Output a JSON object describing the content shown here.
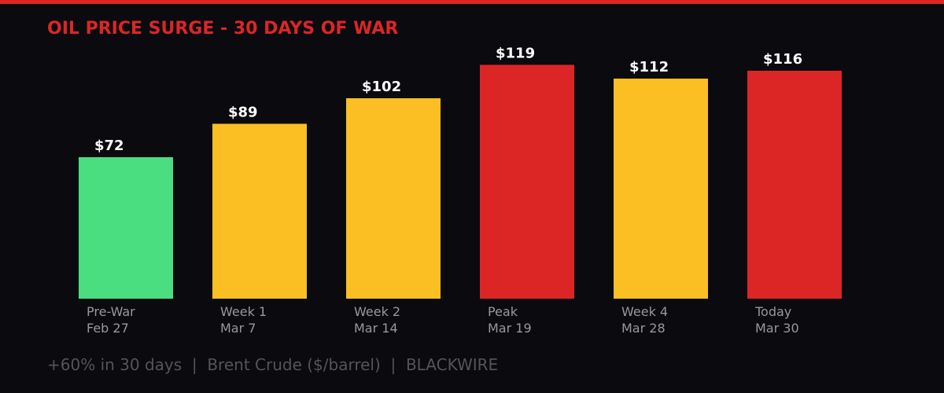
{
  "chart_data": {
    "type": "bar",
    "title": "OIL PRICE SURGE - 30 DAYS OF WAR",
    "categories": [
      {
        "label": "Pre-War",
        "date": "Feb 27"
      },
      {
        "label": "Week 1",
        "date": "Mar 7"
      },
      {
        "label": "Week 2",
        "date": "Mar 14"
      },
      {
        "label": "Peak",
        "date": "Mar 19"
      },
      {
        "label": "Week 4",
        "date": "Mar 28"
      },
      {
        "label": "Today",
        "date": "Mar 30"
      }
    ],
    "values": [
      72,
      89,
      102,
      119,
      112,
      116
    ],
    "value_labels": [
      "$72",
      "$89",
      "$102",
      "$119",
      "$112",
      "$116"
    ],
    "bar_colors": [
      "#4ade80",
      "#fbbf24",
      "#fbbf24",
      "#dc2626",
      "#fbbf24",
      "#dc2626"
    ],
    "ylim": [
      0,
      140
    ],
    "grid": false,
    "footer": "+60% in 30 days  |  Brent Crude ($/barrel)  |  BLACKWIRE"
  },
  "colors": {
    "background": "#0a0a0f",
    "accent": "#dc2626",
    "label": "#999999",
    "footer": "#555555"
  }
}
